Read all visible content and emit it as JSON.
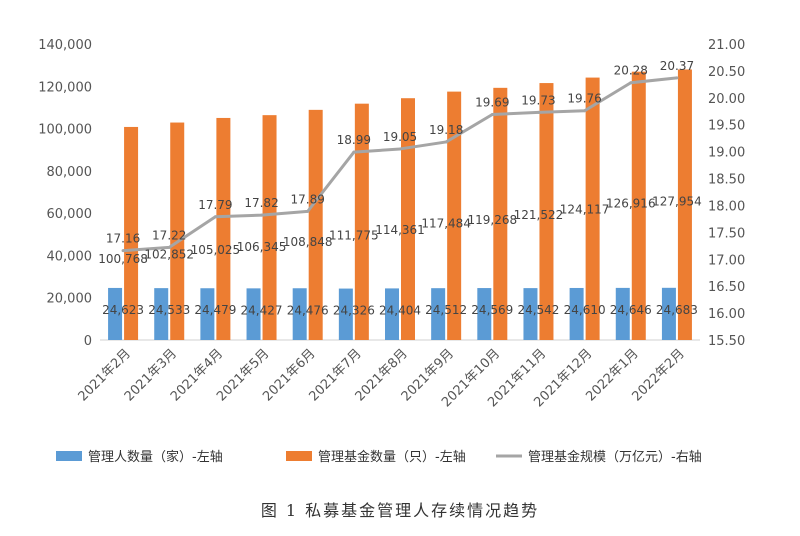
{
  "chart_data": {
    "type": "bar",
    "categories": [
      "2021年2月",
      "2021年3月",
      "2021年4月",
      "2021年5月",
      "2021年6月",
      "2021年7月",
      "2021年8月",
      "2021年9月",
      "2021年10月",
      "2021年11月",
      "2021年12月",
      "2022年1月",
      "2022年2月"
    ],
    "series": [
      {
        "name": "管理人数量（家）-左轴",
        "type": "bar",
        "axis": "left",
        "color": "#5B9BD5",
        "values": [
          24623,
          24533,
          24479,
          24427,
          24476,
          24326,
          24404,
          24512,
          24569,
          24542,
          24610,
          24646,
          24683
        ],
        "labels": [
          "24,623",
          "24,533",
          "24,479",
          "24,427",
          "24,476",
          "24,326",
          "24,404",
          "24,512",
          "24,569",
          "24,542",
          "24,610",
          "24,646",
          "24,683"
        ]
      },
      {
        "name": "管理基金数量（只）-左轴",
        "type": "bar",
        "axis": "left",
        "color": "#ED7D31",
        "values": [
          100768,
          102852,
          105025,
          106345,
          108848,
          111775,
          114361,
          117484,
          119268,
          121522,
          124117,
          126916,
          127954
        ],
        "labels": [
          "100,768",
          "102,852",
          "105,025",
          "106,345",
          "108,848",
          "111,775",
          "114,361",
          "117,484",
          "119,268",
          "121,522",
          "124,117",
          "126,916",
          "127,954"
        ]
      },
      {
        "name": "管理基金规模（万亿元）-右轴",
        "type": "line",
        "axis": "right",
        "color": "#A5A5A5",
        "values": [
          17.16,
          17.22,
          17.79,
          17.82,
          17.89,
          18.99,
          19.05,
          19.18,
          19.69,
          19.73,
          19.76,
          20.28,
          20.37
        ],
        "labels": [
          "17.16",
          "17.22",
          "17.79",
          "17.82",
          "17.89",
          "18.99",
          "19.05",
          "19.18",
          "19.69",
          "19.73",
          "19.76",
          "20.28",
          "20.37"
        ]
      }
    ],
    "left_axis": {
      "ylim": [
        0,
        140000
      ],
      "ticks": [
        "0",
        "20,000",
        "40,000",
        "60,000",
        "80,000",
        "100,000",
        "120,000",
        "140,000"
      ]
    },
    "right_axis": {
      "ylim": [
        15.5,
        21.0
      ],
      "ticks": [
        "15.50",
        "16.00",
        "16.50",
        "17.00",
        "17.50",
        "18.00",
        "18.50",
        "19.00",
        "19.50",
        "20.00",
        "20.50",
        "21.00"
      ]
    },
    "legend_position": "bottom",
    "grid": false,
    "caption": "图 1  私募基金管理人存续情况趋势"
  }
}
